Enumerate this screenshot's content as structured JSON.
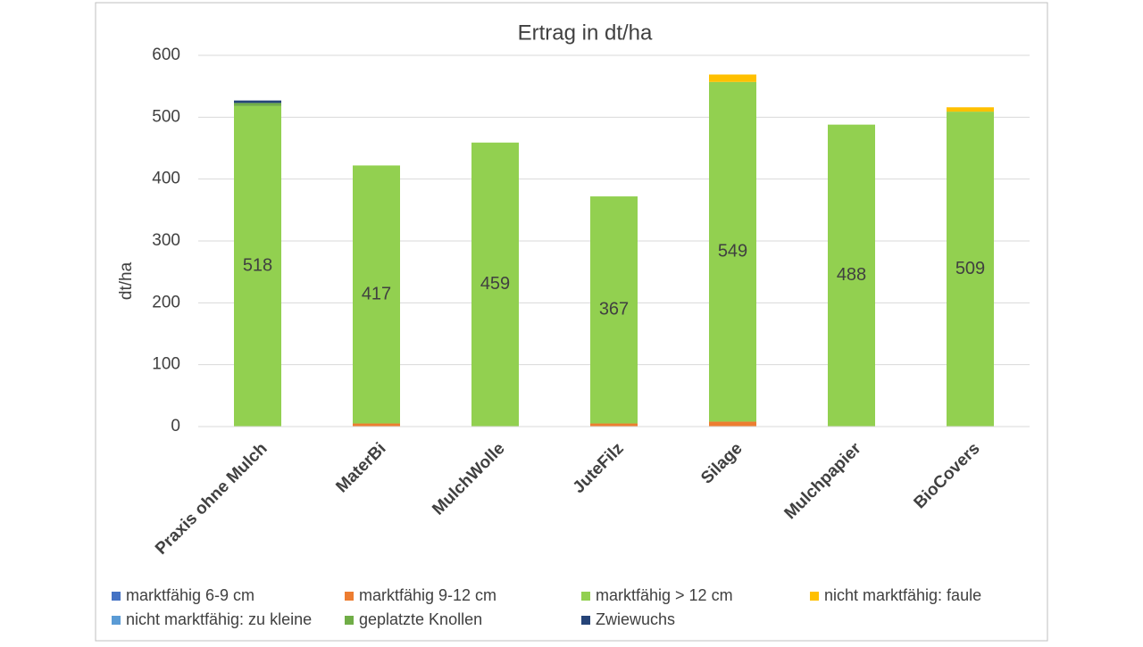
{
  "chart_data": {
    "type": "stacked_bar",
    "title": "Ertrag in dt/ha",
    "y_label": "dt/ha",
    "categories": [
      "Praxis ohne Mulch",
      "MaterBi",
      "MulchWolle",
      "JuteFilz",
      "Silage",
      "Mulchpapier",
      "BioCovers"
    ],
    "series": [
      {
        "name": "marktfähig 6-9 cm",
        "color": "#4472c4",
        "values": [
          0,
          0,
          0,
          0,
          0,
          0,
          0
        ]
      },
      {
        "name": "marktfähig 9-12 cm",
        "color": "#ed7d31",
        "values": [
          0,
          5,
          0,
          5,
          8,
          0,
          0
        ]
      },
      {
        "name": "marktfähig > 12 cm",
        "color": "#92d050",
        "values": [
          518,
          417,
          459,
          367,
          549,
          488,
          509
        ],
        "data_labels": true
      },
      {
        "name": "nicht marktfähig: faule",
        "color": "#ffc000",
        "values": [
          0,
          0,
          0,
          0,
          12,
          0,
          7
        ]
      },
      {
        "name": "nicht marktfähig: zu kleine",
        "color": "#5b9bd5",
        "values": [
          0,
          0,
          0,
          0,
          0,
          0,
          0
        ]
      },
      {
        "name": "geplatzte Knollen",
        "color": "#70ad47",
        "values": [
          5,
          0,
          0,
          0,
          0,
          0,
          0
        ]
      },
      {
        "name": "Zwiewuchs",
        "color": "#264478",
        "values": [
          4,
          0,
          0,
          0,
          0,
          0,
          0
        ]
      }
    ],
    "ylim": [
      0,
      600
    ],
    "yticks": [
      0,
      100,
      200,
      300,
      400,
      500,
      600
    ],
    "grid": true
  }
}
